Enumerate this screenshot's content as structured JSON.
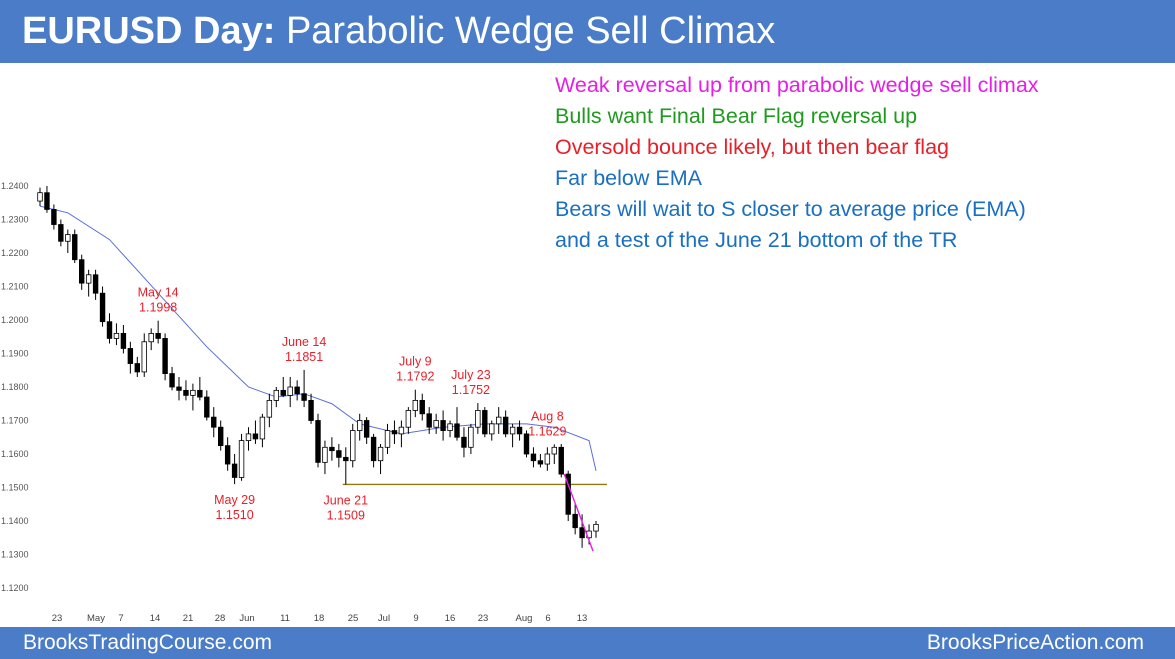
{
  "header": {
    "title_bold": "EURUSD Day:",
    "title_rest": " Parabolic Wedge Sell Climax"
  },
  "notes": [
    {
      "text": "Weak reversal up from parabolic wedge sell climax",
      "color": "#e61ee6"
    },
    {
      "text": "Bulls want Final Bear Flag reversal up",
      "color": "#1f9a1f"
    },
    {
      "text": "Oversold bounce likely, but then bear flag",
      "color": "#e8202a"
    },
    {
      "text": "Far below EMA",
      "color": "#1a6fc0"
    },
    {
      "text": "Bears will wait to S closer to average price (EMA)",
      "color": "#1a6fc0"
    },
    {
      "text": "and a test of the June 21 bottom of the TR",
      "color": "#1a6fc0"
    }
  ],
  "footer": {
    "left": "BrooksTradingCourse.com",
    "right": "BrooksPriceAction.com"
  },
  "chart_data": {
    "type": "candlestick",
    "y_ticks": [
      "1.2400",
      "1.2300",
      "1.2200",
      "1.2100",
      "1.2000",
      "1.1900",
      "1.1800",
      "1.1700",
      "1.1600",
      "1.1500",
      "1.1400",
      "1.1300",
      "1.1200"
    ],
    "ylim": [
      1.12,
      1.24
    ],
    "x_ticks": [
      "23",
      "May",
      "7",
      "14",
      "21",
      "28",
      "Jun",
      "11",
      "18",
      "25",
      "Jul",
      "9",
      "16",
      "23",
      "Aug",
      "6",
      "13"
    ],
    "candles": [
      [
        1.2355,
        1.2395,
        1.234,
        1.238
      ],
      [
        1.238,
        1.24,
        1.232,
        1.233
      ],
      [
        1.233,
        1.2345,
        1.227,
        1.2285
      ],
      [
        1.2285,
        1.23,
        1.222,
        1.2235
      ],
      [
        1.2235,
        1.227,
        1.22,
        1.2255
      ],
      [
        1.2255,
        1.227,
        1.217,
        1.218
      ],
      [
        1.218,
        1.2195,
        1.209,
        1.211
      ],
      [
        1.211,
        1.215,
        1.207,
        1.2135
      ],
      [
        1.2135,
        1.215,
        1.206,
        1.208
      ],
      [
        1.208,
        1.21,
        1.198,
        1.1995
      ],
      [
        1.1995,
        1.202,
        1.193,
        1.1945
      ],
      [
        1.1945,
        1.199,
        1.1925,
        1.196
      ],
      [
        1.196,
        1.1985,
        1.19,
        1.1915
      ],
      [
        1.1915,
        1.1935,
        1.184,
        1.187
      ],
      [
        1.187,
        1.189,
        1.183,
        1.1845
      ],
      [
        1.1845,
        1.196,
        1.183,
        1.1935
      ],
      [
        1.1935,
        1.1975,
        1.191,
        1.196
      ],
      [
        1.196,
        1.1998,
        1.193,
        1.1945
      ],
      [
        1.1945,
        1.196,
        1.182,
        1.184
      ],
      [
        1.184,
        1.186,
        1.179,
        1.18
      ],
      [
        1.18,
        1.183,
        1.176,
        1.179
      ],
      [
        1.179,
        1.182,
        1.176,
        1.1775
      ],
      [
        1.1775,
        1.181,
        1.173,
        1.179
      ],
      [
        1.179,
        1.183,
        1.176,
        1.177
      ],
      [
        1.177,
        1.179,
        1.17,
        1.171
      ],
      [
        1.171,
        1.174,
        1.165,
        1.168
      ],
      [
        1.168,
        1.17,
        1.161,
        1.1625
      ],
      [
        1.1625,
        1.165,
        1.155,
        1.157
      ],
      [
        1.157,
        1.16,
        1.151,
        1.153
      ],
      [
        1.153,
        1.166,
        1.152,
        1.164
      ],
      [
        1.164,
        1.168,
        1.161,
        1.166
      ],
      [
        1.166,
        1.17,
        1.163,
        1.1645
      ],
      [
        1.1645,
        1.172,
        1.162,
        1.171
      ],
      [
        1.171,
        1.178,
        1.168,
        1.176
      ],
      [
        1.176,
        1.18,
        1.174,
        1.179
      ],
      [
        1.179,
        1.183,
        1.177,
        1.1775
      ],
      [
        1.1775,
        1.183,
        1.174,
        1.18
      ],
      [
        1.18,
        1.182,
        1.176,
        1.178
      ],
      [
        1.178,
        1.1851,
        1.174,
        1.176
      ],
      [
        1.176,
        1.178,
        1.169,
        1.17
      ],
      [
        1.17,
        1.172,
        1.156,
        1.1575
      ],
      [
        1.1575,
        1.164,
        1.154,
        1.162
      ],
      [
        1.162,
        1.165,
        1.158,
        1.161
      ],
      [
        1.161,
        1.163,
        1.156,
        1.159
      ],
      [
        1.159,
        1.162,
        1.1509,
        1.158
      ],
      [
        1.158,
        1.169,
        1.156,
        1.167
      ],
      [
        1.167,
        1.172,
        1.164,
        1.17
      ],
      [
        1.17,
        1.171,
        1.163,
        1.165
      ],
      [
        1.165,
        1.166,
        1.156,
        1.158
      ],
      [
        1.158,
        1.163,
        1.154,
        1.162
      ],
      [
        1.162,
        1.169,
        1.16,
        1.167
      ],
      [
        1.167,
        1.17,
        1.163,
        1.166
      ],
      [
        1.166,
        1.17,
        1.162,
        1.168
      ],
      [
        1.168,
        1.174,
        1.166,
        1.173
      ],
      [
        1.173,
        1.1792,
        1.171,
        1.176
      ],
      [
        1.176,
        1.178,
        1.17,
        1.172
      ],
      [
        1.172,
        1.174,
        1.166,
        1.168
      ],
      [
        1.168,
        1.172,
        1.166,
        1.17
      ],
      [
        1.17,
        1.173,
        1.164,
        1.167
      ],
      [
        1.167,
        1.17,
        1.165,
        1.169
      ],
      [
        1.169,
        1.174,
        1.164,
        1.165
      ],
      [
        1.165,
        1.168,
        1.159,
        1.162
      ],
      [
        1.162,
        1.169,
        1.16,
        1.168
      ],
      [
        1.168,
        1.1752,
        1.166,
        1.173
      ],
      [
        1.173,
        1.174,
        1.165,
        1.166
      ],
      [
        1.166,
        1.17,
        1.164,
        1.169
      ],
      [
        1.169,
        1.174,
        1.166,
        1.171
      ],
      [
        1.171,
        1.173,
        1.165,
        1.166
      ],
      [
        1.166,
        1.169,
        1.162,
        1.168
      ],
      [
        1.168,
        1.17,
        1.164,
        1.166
      ],
      [
        1.166,
        1.167,
        1.159,
        1.16
      ],
      [
        1.16,
        1.162,
        1.156,
        1.158
      ],
      [
        1.158,
        1.16,
        1.156,
        1.157
      ],
      [
        1.157,
        1.162,
        1.155,
        1.16
      ],
      [
        1.16,
        1.1629,
        1.157,
        1.162
      ],
      [
        1.162,
        1.163,
        1.153,
        1.154
      ],
      [
        1.154,
        1.155,
        1.14,
        1.142
      ],
      [
        1.142,
        1.145,
        1.136,
        1.138
      ],
      [
        1.138,
        1.142,
        1.132,
        1.135
      ],
      [
        1.135,
        1.139,
        1.133,
        1.137
      ],
      [
        1.137,
        1.14,
        1.135,
        1.139
      ]
    ],
    "ema_points": [
      [
        0,
        1.234
      ],
      [
        4,
        1.232
      ],
      [
        10,
        1.224
      ],
      [
        17,
        1.208
      ],
      [
        24,
        1.192
      ],
      [
        30,
        1.18
      ],
      [
        34,
        1.177
      ],
      [
        38,
        1.178
      ],
      [
        42,
        1.175
      ],
      [
        46,
        1.169
      ],
      [
        52,
        1.166
      ],
      [
        58,
        1.168
      ],
      [
        64,
        1.169
      ],
      [
        70,
        1.169
      ],
      [
        74,
        1.168
      ],
      [
        79,
        1.164
      ],
      [
        80,
        1.155
      ]
    ],
    "range_line": {
      "level": 1.1509,
      "from_index": 44
    },
    "wedge_line": {
      "from": [
        75,
        1.154
      ],
      "to": [
        79,
        1.131
      ]
    },
    "annotations": [
      {
        "index": 17,
        "price": 1.1998,
        "label": "May 14",
        "value": "1.1998",
        "position": "above"
      },
      {
        "index": 28,
        "price": 1.151,
        "label": "May 29",
        "value": "1.1510",
        "position": "below"
      },
      {
        "index": 38,
        "price": 1.1851,
        "label": "June 14",
        "value": "1.1851",
        "position": "above"
      },
      {
        "index": 44,
        "price": 1.1509,
        "label": "June 21",
        "value": "1.1509",
        "position": "below"
      },
      {
        "index": 54,
        "price": 1.1792,
        "label": "July 9",
        "value": "1.1792",
        "position": "above"
      },
      {
        "index": 62,
        "price": 1.1752,
        "label": "July 23",
        "value": "1.1752",
        "position": "above"
      },
      {
        "index": 73,
        "price": 1.1629,
        "label": "Aug 8",
        "value": "1.1629",
        "position": "above"
      }
    ],
    "colors": {
      "bull": "#ffffff",
      "bear": "#000000",
      "wick": "#000000",
      "ema": "#5a6ed8",
      "range_line": "#8a7a10",
      "wedge_line": "#e61ee6",
      "annotation": "#e8202a"
    }
  }
}
